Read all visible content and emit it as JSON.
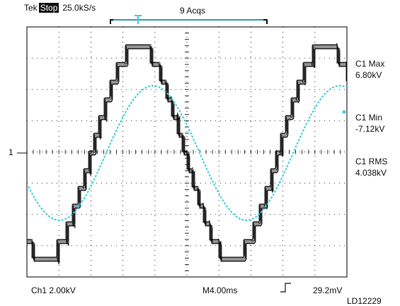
{
  "header": {
    "brand": "Tek",
    "mode": "Stop",
    "sample_rate": "25.0kS/s",
    "acquisitions": "9 Acqs"
  },
  "channel_marker": "1",
  "measurements": [
    {
      "label": "C1 Max",
      "value": "6.80kV"
    },
    {
      "label": "C1 Min",
      "value": "-7.12kV"
    },
    {
      "label": "C1 RMS",
      "value": "4.038kV"
    }
  ],
  "footer": {
    "ch1_scale": "Ch1  2.00kV",
    "timebase": "M4.00ms",
    "trigger_level": "29.2mV"
  },
  "figure_id": "LD12229",
  "colors": {
    "stepped_trace": "#000000",
    "sine_trace": "#3fcfdc",
    "trigger_bracket": "#3fcfdc",
    "grid": "#000000"
  },
  "icons": [
    "trigger-marker-icon",
    "rising-edge-trigger-icon"
  ]
}
